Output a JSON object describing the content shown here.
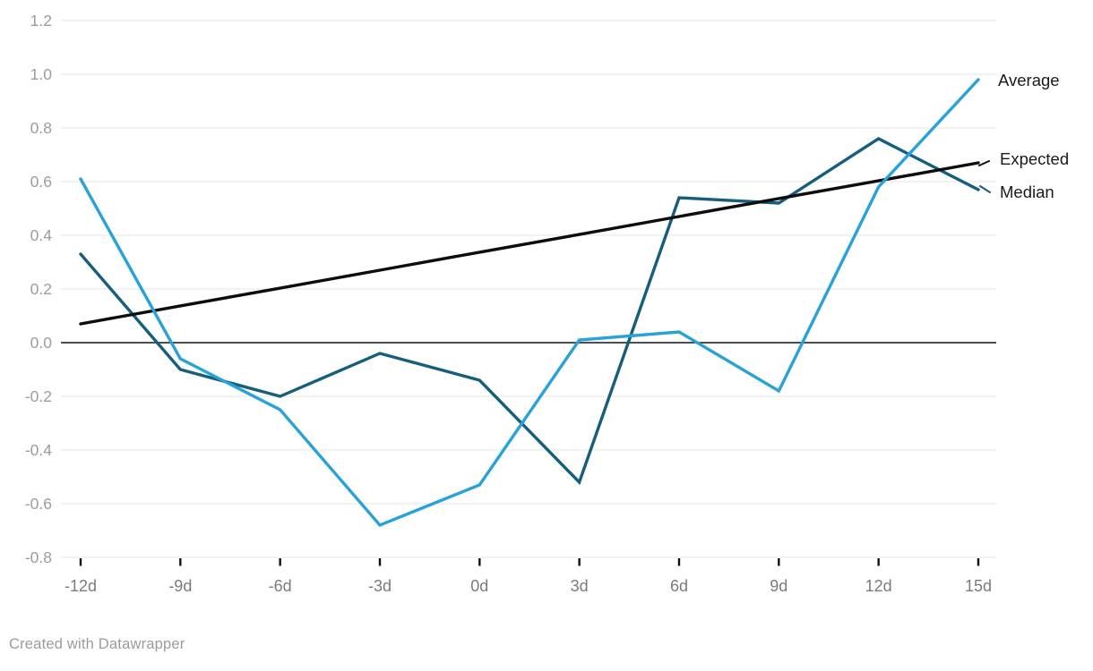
{
  "chart_data": {
    "type": "line",
    "title": "",
    "xlabel": "",
    "ylabel": "",
    "categories": [
      "-12d",
      "-9d",
      "-6d",
      "-3d",
      "0d",
      "3d",
      "6d",
      "9d",
      "12d",
      "15d"
    ],
    "series": [
      {
        "name": "Average",
        "color": "#29a2d8",
        "values": [
          0.61,
          -0.06,
          -0.25,
          -0.68,
          -0.53,
          0.01,
          0.04,
          -0.18,
          0.58,
          0.98
        ]
      },
      {
        "name": "Expected",
        "color": "#0d0d0d",
        "values": [
          0.07,
          0.137,
          0.203,
          0.27,
          0.337,
          0.403,
          0.47,
          0.537,
          0.603,
          0.67
        ]
      },
      {
        "name": "Median",
        "color": "#155f7c",
        "values": [
          0.33,
          -0.1,
          -0.2,
          -0.04,
          -0.14,
          -0.52,
          0.54,
          0.52,
          0.76,
          0.57
        ]
      }
    ],
    "ylim": [
      -0.8,
      1.2
    ],
    "ytick_step": 0.2,
    "yticks": [
      "1.2",
      "1.0",
      "0.8",
      "0.6",
      "0.4",
      "0.2",
      "0.0",
      "-0.2",
      "-0.4",
      "-0.6",
      "-0.8"
    ],
    "grid": "horizontal",
    "zero_line": true,
    "legend_position": "right-of-line-ends",
    "colors": {
      "gridline": "#e6e6e6",
      "zero_line": "#141414",
      "y_tick_label": "#9c9c9c",
      "x_tick_label": "#7b7b7b",
      "legend_label": "#1a1a1a",
      "tick_mark": "#111111"
    }
  },
  "footer": {
    "credit": "Created with Datawrapper"
  }
}
